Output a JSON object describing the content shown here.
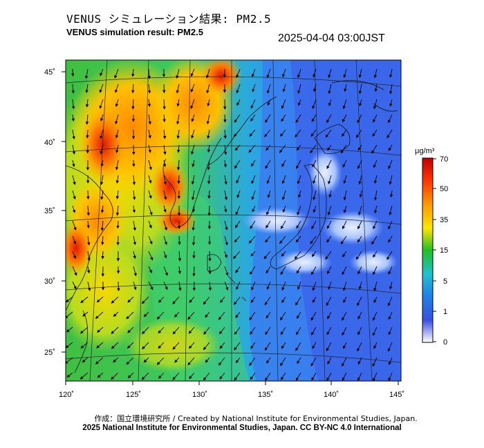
{
  "title_jp": "VENUS シミュレーション結果: PM2.5",
  "title_en": "VENUS simulation result: PM2.5",
  "timestamp": "2025-04-04 03:00JST",
  "map": {
    "lon_range": [
      120,
      145
    ],
    "lat_range": [
      23,
      46
    ],
    "lon_ticks": [
      "120˚",
      "125˚",
      "130˚",
      "135˚",
      "140˚",
      "145˚"
    ],
    "lat_ticks": [
      "45˚",
      "40˚",
      "35˚",
      "30˚",
      "25˚"
    ],
    "field": "PM2.5 surface concentration with wind vectors"
  },
  "colorbar": {
    "unit": "μg/m³",
    "ticks": [
      "70",
      "50",
      "35",
      "15",
      "5",
      "1",
      "0"
    ],
    "colors": [
      "#d00000",
      "#ff6600",
      "#ffd400",
      "#22c022",
      "#1ea8e0",
      "#3355dd",
      "#ffffff"
    ]
  },
  "credits": {
    "line1": "作成：国立環境研究所 / Created by National Institute for Environmental Studies, Japan.",
    "line2": "2025 National Institute for Environmental Studies, Japan. CC BY-NC 4.0 International"
  }
}
